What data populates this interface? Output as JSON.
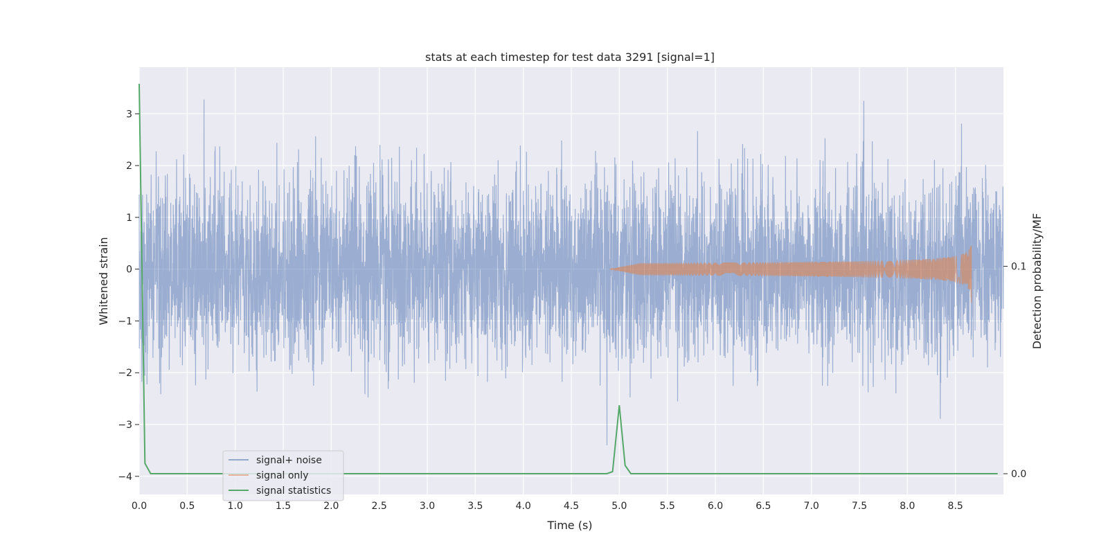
{
  "chart_data": {
    "type": "line",
    "title": "stats at each timestep for test data 3291 [signal=1]",
    "xlabel": "Time (s)",
    "ylabel": "Whitened strain",
    "y2label": "Detection probability/MF",
    "xlim": [
      0.0,
      9.0
    ],
    "ylim": [
      -4.35,
      3.9
    ],
    "y2lim": [
      -0.01,
      0.196
    ],
    "x_ticks": [
      0.0,
      0.5,
      1.0,
      1.5,
      2.0,
      2.5,
      3.0,
      3.5,
      4.0,
      4.5,
      5.0,
      5.5,
      6.0,
      6.5,
      7.0,
      7.5,
      8.0,
      8.5
    ],
    "x_tick_labels": [
      "0.0",
      "0.5",
      "1.0",
      "1.5",
      "2.0",
      "2.5",
      "3.0",
      "3.5",
      "4.0",
      "4.5",
      "5.0",
      "5.5",
      "6.0",
      "6.5",
      "7.0",
      "7.5",
      "8.0",
      "8.5"
    ],
    "y_ticks": [
      3,
      2,
      1,
      0,
      -1,
      -2,
      -3,
      -4
    ],
    "y_tick_labels": [
      "3",
      "2",
      "1",
      "0",
      "−1",
      "−2",
      "−3",
      "−4"
    ],
    "y2_ticks": [
      0.1,
      0.0
    ],
    "y2_tick_labels": [
      "0.1",
      "0.0"
    ],
    "grid": true,
    "legend_position": "lower-left",
    "series": [
      {
        "name": "signal+ noise",
        "color": "#4c72b0",
        "axis": "left",
        "description_range": [
          -3.4,
          3.55
        ],
        "noise_std": 0.85
      },
      {
        "name": "signal only",
        "color": "#dd8452",
        "axis": "left",
        "chirp_start": 4.9,
        "merger_time": 8.67,
        "peak_amplitude": 0.65
      },
      {
        "name": "signal statistics",
        "color": "#55a868",
        "axis": "right",
        "x": [
          0.0,
          0.06,
          0.12,
          0.5,
          1.0,
          2.0,
          3.0,
          4.0,
          4.87,
          4.93,
          5.0,
          5.06,
          5.12,
          5.5,
          6.0,
          7.0,
          8.0,
          8.5,
          8.94
        ],
        "values": [
          0.188,
          0.005,
          0.0,
          0.0,
          0.0,
          0.0,
          0.0,
          0.0,
          0.0,
          0.001,
          0.033,
          0.004,
          0.0,
          0.0,
          0.0,
          0.0,
          0.0,
          0.0,
          0.0
        ]
      }
    ]
  }
}
